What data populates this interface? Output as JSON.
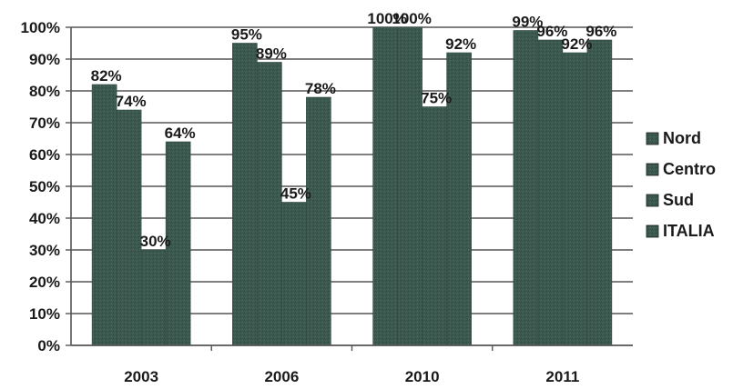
{
  "chart_data": {
    "type": "bar",
    "categories": [
      "2003",
      "2006",
      "2010",
      "2011"
    ],
    "series": [
      {
        "name": "Nord",
        "values": [
          82,
          95,
          100,
          99
        ],
        "labels": [
          "82%",
          "95%",
          "100%",
          "99%"
        ]
      },
      {
        "name": "Centro",
        "values": [
          74,
          89,
          100,
          96
        ],
        "labels": [
          "74%",
          "89%",
          "100%",
          "96%"
        ]
      },
      {
        "name": "Sud",
        "values": [
          30,
          45,
          75,
          92
        ],
        "labels": [
          "30%",
          "45%",
          "75%",
          "92%"
        ]
      },
      {
        "name": "ITALIA",
        "values": [
          64,
          78,
          92,
          96
        ],
        "labels": [
          "64%",
          "78%",
          "92%",
          "96%"
        ]
      }
    ],
    "ylim": [
      0,
      100
    ],
    "yticks": [
      "0%",
      "10%",
      "20%",
      "30%",
      "40%",
      "50%",
      "60%",
      "70%",
      "80%",
      "90%",
      "100%"
    ],
    "grid": true,
    "legend": "right"
  },
  "colors": {
    "bar": "#3d5a50",
    "bar_dark": "#2f4a40",
    "grid": "#555555",
    "text": "#1a1a1a"
  }
}
